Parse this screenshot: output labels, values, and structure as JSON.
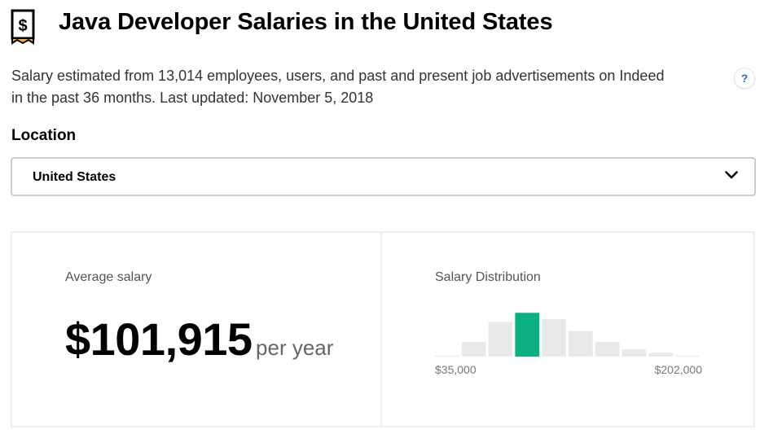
{
  "header": {
    "title": "Java Developer Salaries in the United States",
    "subtitle": "Salary estimated from 13,014 employees, users, and past and present job advertisements on Indeed in the past 36 months. Last updated: November 5, 2018",
    "icon": "salary-tag-icon",
    "help_label": "?"
  },
  "location": {
    "label": "Location",
    "selected": "United States",
    "icon": "chevron-down-icon"
  },
  "average": {
    "label": "Average salary",
    "amount": "$101,915",
    "period": "per year"
  },
  "distribution": {
    "label": "Salary Distribution",
    "min_label": "$35,000",
    "max_label": "$202,000"
  },
  "colors": {
    "highlight": "#0aaf82",
    "bar": "#e9e9e9",
    "icon_gold": "#f4b23a"
  },
  "chart_data": {
    "type": "bar",
    "title": "Salary Distribution",
    "xlabel": "",
    "ylabel": "",
    "range_labels": [
      "$35,000",
      "$202,000"
    ],
    "values": [
      1,
      16,
      38,
      48,
      41,
      28,
      16,
      8,
      4,
      1
    ],
    "highlight_index": 3,
    "ylim": [
      0,
      50
    ]
  }
}
